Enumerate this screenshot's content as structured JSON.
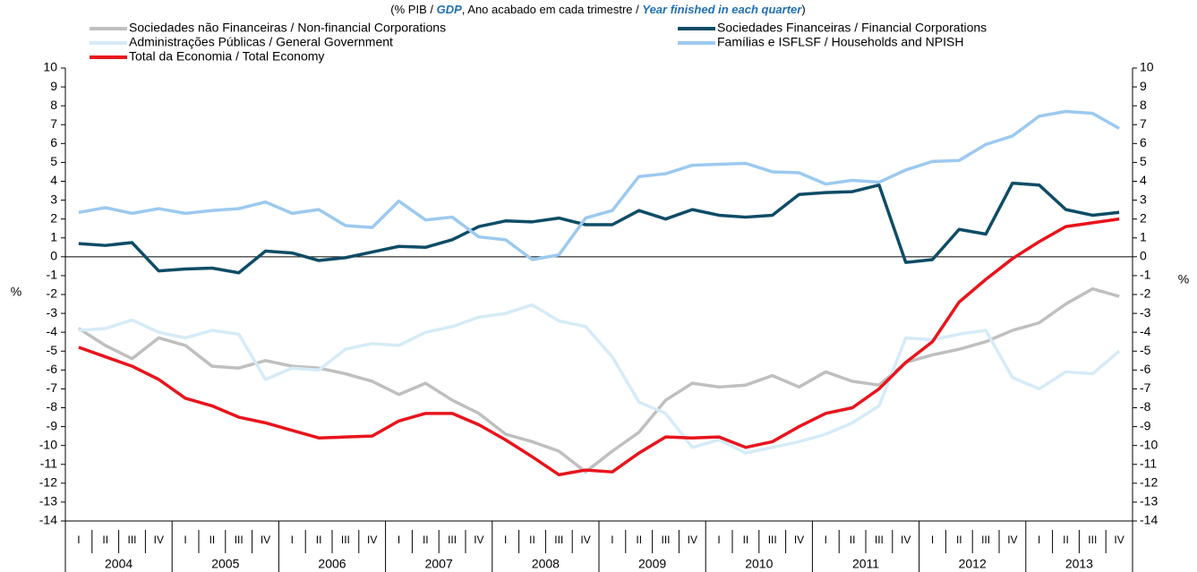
{
  "chart_data": {
    "type": "line",
    "subtitle_parts": [
      "(% PIB / ",
      "GDP",
      ", Ano acabado em cada trimestre / ",
      "Year finished in each quarter",
      ")"
    ],
    "ylabel": "%",
    "y2label": "%",
    "categories": [
      "I",
      "II",
      "III",
      "IV",
      "I",
      "II",
      "III",
      "IV",
      "I",
      "II",
      "III",
      "IV",
      "I",
      "II",
      "III",
      "IV",
      "I",
      "II",
      "III",
      "IV",
      "I",
      "II",
      "III",
      "IV",
      "I",
      "II",
      "III",
      "IV",
      "I",
      "II",
      "III",
      "IV",
      "I",
      "II",
      "III",
      "IV",
      "I",
      "II",
      "III",
      "IV"
    ],
    "years": [
      "2004",
      "2005",
      "2006",
      "2007",
      "2008",
      "2009",
      "2010",
      "2011",
      "2012",
      "2013"
    ],
    "ylim": [
      -14,
      10
    ],
    "yticks": [
      -14,
      -13,
      -12,
      -11,
      -10,
      -9,
      -8,
      -7,
      -6,
      -5,
      -4,
      -3,
      -2,
      -1,
      0,
      1,
      2,
      3,
      4,
      5,
      6,
      7,
      8,
      9,
      10
    ],
    "y2lim": [
      -14,
      10
    ],
    "y2ticks": [
      -14,
      -13,
      -12,
      -11,
      -10,
      -9,
      -8,
      -7,
      -6,
      -5,
      -4,
      -3,
      -2,
      -1,
      0,
      1,
      2,
      3,
      4,
      5,
      6,
      7,
      8,
      9,
      10
    ],
    "series": [
      {
        "name": "Sociedades não Financeiras / Non-financial Corporations",
        "color": "#bfbfbf",
        "values": [
          -3.8,
          -4.7,
          -5.4,
          -4.3,
          -4.7,
          -5.8,
          -5.9,
          -5.5,
          -5.8,
          -5.9,
          -6.2,
          -6.6,
          -7.3,
          -6.7,
          -7.6,
          -8.3,
          -9.4,
          -9.8,
          -10.3,
          -11.4,
          -10.3,
          -9.3,
          -7.6,
          -6.7,
          -6.9,
          -6.8,
          -6.3,
          -6.9,
          -6.1,
          -6.6,
          -6.8,
          -5.6,
          -5.2,
          -4.9,
          -4.5,
          -3.9,
          -3.5,
          -2.5,
          -1.7,
          -2.1
        ]
      },
      {
        "name": "Sociedades Financeiras / Financial Corporations",
        "color": "#0e4c66",
        "values": [
          0.7,
          0.6,
          0.75,
          -0.75,
          -0.65,
          -0.6,
          -0.85,
          0.3,
          0.2,
          -0.2,
          -0.05,
          0.25,
          0.55,
          0.5,
          0.9,
          1.6,
          1.9,
          1.85,
          2.05,
          1.7,
          1.7,
          2.45,
          2.0,
          2.5,
          2.2,
          2.1,
          2.2,
          3.3,
          3.4,
          3.45,
          3.8,
          -0.3,
          -0.15,
          1.45,
          1.2,
          3.9,
          3.8,
          2.5,
          2.2,
          2.35
        ]
      },
      {
        "name": "Administrações Públicas / General Government",
        "color": "#d5ebf7",
        "values": [
          -3.9,
          -3.8,
          -3.35,
          -4.0,
          -4.3,
          -3.9,
          -4.1,
          -6.5,
          -5.9,
          -6.0,
          -4.9,
          -4.6,
          -4.7,
          -4.0,
          -3.7,
          -3.2,
          -3.0,
          -2.55,
          -3.4,
          -3.7,
          -5.3,
          -7.7,
          -8.3,
          -10.1,
          -9.7,
          -10.4,
          -10.1,
          -9.8,
          -9.4,
          -8.8,
          -7.9,
          -4.3,
          -4.4,
          -4.1,
          -3.9,
          -6.4,
          -7.0,
          -6.1,
          -6.2,
          -5.0
        ]
      },
      {
        "name": "Famílias e ISFLSF / Households and NPISH",
        "color": "#9cc9ef",
        "values": [
          2.35,
          2.6,
          2.3,
          2.55,
          2.3,
          2.45,
          2.55,
          2.9,
          2.3,
          2.5,
          1.65,
          1.55,
          2.95,
          1.95,
          2.1,
          1.05,
          0.9,
          -0.15,
          0.1,
          2.05,
          2.45,
          4.25,
          4.4,
          4.85,
          4.9,
          4.95,
          4.5,
          4.45,
          3.85,
          4.05,
          3.95,
          4.6,
          5.05,
          5.1,
          5.95,
          6.4,
          7.45,
          7.7,
          7.6,
          6.8
        ]
      },
      {
        "name": "Total da Economia / Total Economy",
        "color": "#e8141c",
        "values": [
          -4.8,
          -5.3,
          -5.8,
          -6.5,
          -7.5,
          -7.9,
          -8.5,
          -8.8,
          -9.2,
          -9.6,
          -9.55,
          -9.5,
          -8.7,
          -8.3,
          -8.3,
          -8.9,
          -9.7,
          -10.6,
          -11.55,
          -11.3,
          -11.4,
          -10.4,
          -9.55,
          -9.6,
          -9.55,
          -10.1,
          -9.8,
          -9.0,
          -8.3,
          -8.0,
          -7.0,
          -5.6,
          -4.5,
          -2.4,
          -1.2,
          -0.1,
          0.8,
          1.6,
          1.8,
          2.0
        ]
      }
    ]
  }
}
